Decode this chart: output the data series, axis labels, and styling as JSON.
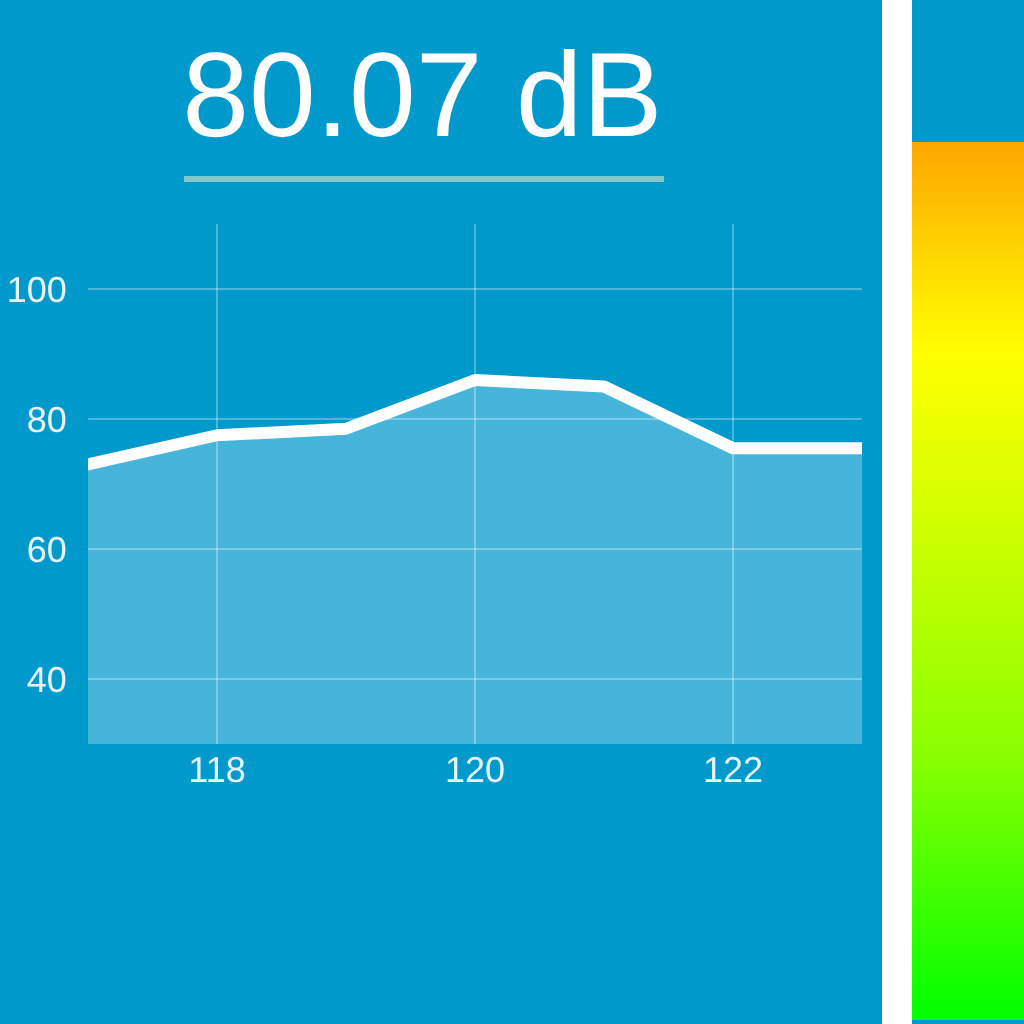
{
  "chart_data": {
    "type": "area",
    "title": "80.07 dB",
    "x": [
      117,
      118,
      119,
      120,
      121,
      122,
      123
    ],
    "values": [
      73,
      77.5,
      78.5,
      86,
      85,
      75.5,
      75.5
    ],
    "color": "#ffffff",
    "xlim": [
      117,
      123
    ],
    "xticks": [
      118,
      120,
      122
    ],
    "ylim": [
      30,
      110
    ],
    "yticks": [
      40,
      60,
      80,
      100
    ],
    "grid": true,
    "line_style": "solid"
  }
}
